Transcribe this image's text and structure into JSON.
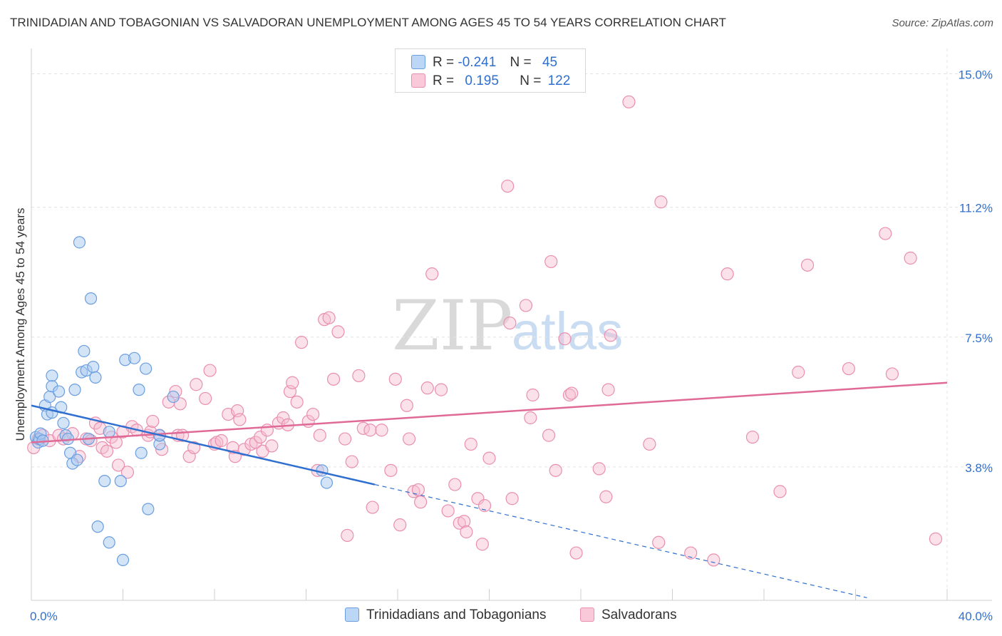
{
  "header": {
    "title": "TRINIDADIAN AND TOBAGONIAN VS SALVADORAN UNEMPLOYMENT AMONG AGES 45 TO 54 YEARS CORRELATION CHART",
    "source": "Source: ZipAtlas.com"
  },
  "legend_stats": {
    "blue": {
      "r_label": "R =",
      "r_value": "-0.241",
      "n_label": "N =",
      "n_value": "45"
    },
    "pink": {
      "r_label": "R =",
      "r_value": "0.195",
      "n_label": "N =",
      "n_value": "122"
    }
  },
  "watermark": {
    "zip": "ZIP",
    "atlas": "atlas"
  },
  "colors": {
    "blue_fill": "#a9c9f0",
    "blue_stroke": "#6a9ee0",
    "blue_line": "#2f6fd0",
    "pink_fill": "#f6bcd0",
    "pink_stroke": "#e98fb0",
    "pink_line": "#e06a96",
    "grid": "#e4e4e4",
    "tick_label": "#2f6fd0"
  },
  "chart_data": {
    "type": "scatter",
    "title": "TRINIDADIAN AND TOBAGONIAN VS SALVADORAN UNEMPLOYMENT AMONG AGES 45 TO 54 YEARS CORRELATION CHART",
    "xlabel": "",
    "ylabel": "Unemployment Among Ages 45 to 54 years",
    "xlim": [
      0,
      40
    ],
    "ylim": [
      0,
      15.6
    ],
    "x_tick_labels": [
      "0.0%",
      "40.0%"
    ],
    "y_ticks": [
      3.8,
      7.5,
      11.2,
      15.0
    ],
    "y_tick_labels": [
      "3.8%",
      "7.5%",
      "11.2%",
      "15.0%"
    ],
    "legend": [
      "Trinidadians and Tobagonians",
      "Salvadorans"
    ],
    "series": [
      {
        "name": "Trinidadians and Tobagonians",
        "r": -0.241,
        "n": 45,
        "trend": {
          "x0": 0.0,
          "y0": 5.55,
          "x1": 15.0,
          "y1": 3.3,
          "dash_to_x": 36.5
        },
        "points": [
          [
            0.2,
            4.65
          ],
          [
            0.3,
            4.5
          ],
          [
            0.35,
            4.6
          ],
          [
            0.4,
            4.75
          ],
          [
            0.5,
            4.55
          ],
          [
            0.6,
            5.55
          ],
          [
            0.7,
            5.3
          ],
          [
            0.8,
            5.8
          ],
          [
            0.9,
            5.35
          ],
          [
            0.9,
            6.4
          ],
          [
            0.9,
            6.1
          ],
          [
            1.2,
            5.95
          ],
          [
            1.3,
            5.5
          ],
          [
            1.4,
            5.05
          ],
          [
            1.5,
            4.7
          ],
          [
            1.6,
            4.6
          ],
          [
            1.7,
            4.2
          ],
          [
            1.8,
            3.9
          ],
          [
            1.9,
            6.0
          ],
          [
            2.0,
            4.0
          ],
          [
            2.1,
            10.2
          ],
          [
            2.2,
            6.5
          ],
          [
            2.3,
            7.1
          ],
          [
            2.4,
            6.55
          ],
          [
            2.5,
            4.6
          ],
          [
            2.6,
            8.6
          ],
          [
            2.7,
            6.65
          ],
          [
            2.8,
            6.35
          ],
          [
            2.9,
            2.1
          ],
          [
            3.2,
            3.4
          ],
          [
            3.4,
            1.65
          ],
          [
            3.4,
            4.8
          ],
          [
            3.9,
            3.4
          ],
          [
            4.0,
            1.15
          ],
          [
            4.1,
            6.85
          ],
          [
            4.5,
            6.9
          ],
          [
            4.7,
            6.0
          ],
          [
            4.8,
            4.2
          ],
          [
            5.0,
            6.6
          ],
          [
            5.1,
            2.6
          ],
          [
            5.6,
            4.45
          ],
          [
            5.6,
            4.7
          ],
          [
            6.2,
            5.8
          ],
          [
            12.7,
            3.7
          ],
          [
            12.9,
            3.35
          ]
        ]
      },
      {
        "name": "Salvadorans",
        "r": 0.195,
        "n": 122,
        "trend": {
          "x0": 0.0,
          "y0": 4.5,
          "x1": 40.0,
          "y1": 6.2
        },
        "points": [
          [
            0.1,
            4.35
          ],
          [
            0.3,
            4.6
          ],
          [
            0.5,
            4.7
          ],
          [
            0.8,
            4.55
          ],
          [
            1.2,
            4.7
          ],
          [
            1.4,
            4.6
          ],
          [
            1.8,
            4.75
          ],
          [
            2.1,
            4.1
          ],
          [
            2.4,
            4.6
          ],
          [
            2.6,
            4.55
          ],
          [
            2.8,
            5.05
          ],
          [
            3.0,
            4.9
          ],
          [
            3.1,
            4.35
          ],
          [
            3.3,
            4.25
          ],
          [
            3.5,
            4.65
          ],
          [
            3.7,
            4.5
          ],
          [
            3.8,
            3.85
          ],
          [
            4.0,
            4.8
          ],
          [
            4.2,
            3.65
          ],
          [
            4.4,
            4.95
          ],
          [
            4.6,
            4.85
          ],
          [
            5.1,
            4.7
          ],
          [
            5.2,
            4.8
          ],
          [
            5.3,
            5.1
          ],
          [
            5.6,
            4.7
          ],
          [
            5.7,
            4.3
          ],
          [
            6.0,
            5.65
          ],
          [
            6.3,
            5.95
          ],
          [
            6.4,
            4.7
          ],
          [
            6.5,
            5.6
          ],
          [
            6.6,
            4.7
          ],
          [
            6.9,
            4.1
          ],
          [
            7.1,
            4.35
          ],
          [
            7.2,
            6.15
          ],
          [
            7.6,
            5.75
          ],
          [
            7.8,
            6.55
          ],
          [
            8.0,
            4.45
          ],
          [
            8.1,
            4.5
          ],
          [
            8.3,
            4.55
          ],
          [
            8.6,
            5.3
          ],
          [
            8.8,
            4.35
          ],
          [
            8.9,
            4.1
          ],
          [
            9.0,
            5.4
          ],
          [
            9.1,
            5.15
          ],
          [
            9.3,
            4.3
          ],
          [
            9.6,
            4.45
          ],
          [
            9.8,
            4.5
          ],
          [
            10.0,
            4.65
          ],
          [
            10.1,
            4.25
          ],
          [
            10.3,
            4.85
          ],
          [
            10.5,
            4.4
          ],
          [
            10.8,
            5.05
          ],
          [
            11.0,
            5.2
          ],
          [
            11.2,
            5.0
          ],
          [
            11.3,
            5.95
          ],
          [
            11.4,
            6.2
          ],
          [
            11.6,
            5.65
          ],
          [
            11.8,
            7.35
          ],
          [
            12.1,
            5.1
          ],
          [
            12.3,
            5.3
          ],
          [
            12.5,
            3.7
          ],
          [
            12.6,
            4.7
          ],
          [
            12.8,
            8.0
          ],
          [
            13.0,
            8.05
          ],
          [
            13.2,
            6.3
          ],
          [
            13.4,
            7.65
          ],
          [
            13.7,
            4.6
          ],
          [
            13.8,
            1.85
          ],
          [
            14.0,
            3.95
          ],
          [
            14.3,
            6.4
          ],
          [
            14.5,
            4.9
          ],
          [
            14.8,
            4.85
          ],
          [
            14.9,
            2.65
          ],
          [
            15.3,
            4.85
          ],
          [
            15.7,
            3.7
          ],
          [
            15.9,
            6.3
          ],
          [
            16.1,
            2.15
          ],
          [
            16.4,
            5.55
          ],
          [
            16.5,
            4.6
          ],
          [
            16.7,
            3.1
          ],
          [
            16.9,
            3.15
          ],
          [
            17.0,
            2.8
          ],
          [
            17.3,
            6.05
          ],
          [
            17.5,
            9.3
          ],
          [
            17.9,
            6.0
          ],
          [
            18.2,
            2.55
          ],
          [
            18.5,
            3.3
          ],
          [
            18.7,
            2.2
          ],
          [
            18.9,
            2.25
          ],
          [
            19.0,
            1.95
          ],
          [
            19.2,
            4.45
          ],
          [
            19.5,
            2.9
          ],
          [
            19.7,
            1.6
          ],
          [
            19.8,
            2.7
          ],
          [
            20.0,
            4.05
          ],
          [
            20.8,
            11.8
          ],
          [
            20.9,
            7.9
          ],
          [
            21.0,
            2.9
          ],
          [
            21.6,
            8.4
          ],
          [
            21.8,
            5.2
          ],
          [
            21.9,
            5.85
          ],
          [
            22.6,
            4.7
          ],
          [
            22.7,
            9.65
          ],
          [
            22.9,
            3.7
          ],
          [
            23.3,
            7.45
          ],
          [
            23.5,
            5.85
          ],
          [
            23.6,
            5.9
          ],
          [
            23.8,
            1.35
          ],
          [
            24.8,
            3.75
          ],
          [
            25.1,
            2.95
          ],
          [
            25.2,
            6.0
          ],
          [
            25.3,
            7.55
          ],
          [
            26.1,
            14.2
          ],
          [
            27.0,
            4.45
          ],
          [
            27.4,
            1.65
          ],
          [
            27.5,
            11.35
          ],
          [
            28.8,
            1.35
          ],
          [
            29.8,
            1.15
          ],
          [
            30.4,
            9.3
          ],
          [
            31.5,
            4.65
          ],
          [
            32.7,
            3.1
          ],
          [
            33.5,
            6.5
          ],
          [
            33.9,
            9.55
          ],
          [
            35.7,
            6.6
          ],
          [
            37.3,
            10.45
          ],
          [
            37.6,
            6.45
          ],
          [
            38.4,
            9.75
          ],
          [
            39.5,
            1.75
          ]
        ]
      }
    ]
  }
}
